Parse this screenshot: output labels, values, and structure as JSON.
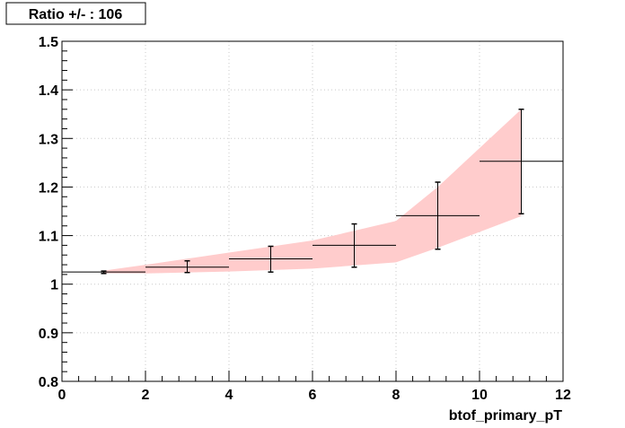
{
  "chart_data": {
    "type": "line",
    "title": "Ratio +/- : 106",
    "xlabel": "btof_primary_pT",
    "ylabel": "",
    "xlim": [
      0,
      12
    ],
    "ylim": [
      0.8,
      1.5
    ],
    "x_ticks": [
      "0",
      "2",
      "4",
      "6",
      "8",
      "10",
      "12"
    ],
    "y_ticks": [
      "0.8",
      "0.9",
      "1",
      "1.1",
      "1.2",
      "1.3",
      "1.4",
      "1.5"
    ],
    "grid": true,
    "band_color": "#ffcccc",
    "marker_color": "#000000",
    "band": {
      "x": [
        1,
        2,
        4,
        6,
        8,
        9,
        11
      ],
      "lower": [
        1.022,
        1.022,
        1.026,
        1.032,
        1.045,
        1.075,
        1.14
      ],
      "upper": [
        1.028,
        1.04,
        1.065,
        1.09,
        1.13,
        1.2,
        1.36
      ]
    },
    "series": [
      {
        "points": [
          {
            "x": 1,
            "xerr": 1,
            "y": 1.025,
            "ylo": 1.022,
            "yhi": 1.027
          },
          {
            "x": 3,
            "xerr": 1,
            "y": 1.035,
            "ylo": 1.024,
            "yhi": 1.048
          },
          {
            "x": 5,
            "xerr": 1,
            "y": 1.052,
            "ylo": 1.025,
            "yhi": 1.078
          },
          {
            "x": 7,
            "xerr": 1,
            "y": 1.08,
            "ylo": 1.035,
            "yhi": 1.124
          },
          {
            "x": 9,
            "xerr": 1,
            "y": 1.141,
            "ylo": 1.072,
            "yhi": 1.21
          },
          {
            "x": 11,
            "xerr": 1,
            "y": 1.253,
            "ylo": 1.145,
            "yhi": 1.36
          }
        ]
      }
    ]
  }
}
